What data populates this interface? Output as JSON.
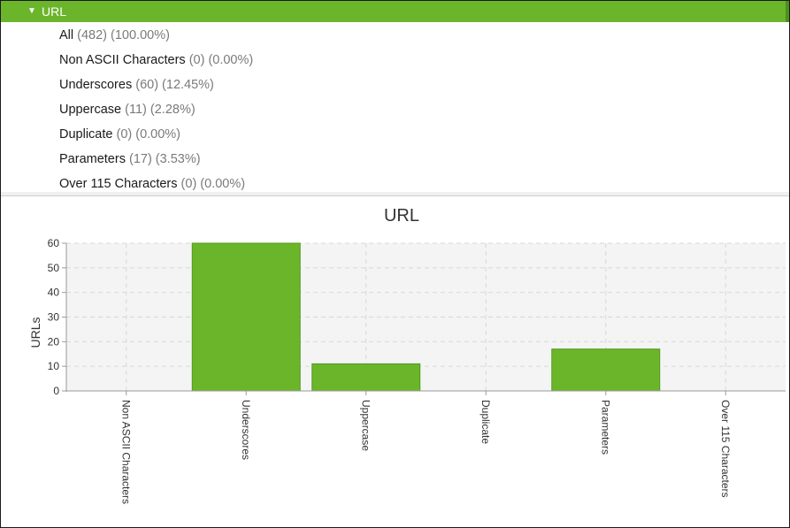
{
  "tree": {
    "header_label": "URL",
    "expand_icon": "triangle-down-icon",
    "items": [
      {
        "label": "All",
        "count": "(482) (100.00%)"
      },
      {
        "label": "Non ASCII Characters",
        "count": "(0) (0.00%)"
      },
      {
        "label": "Underscores",
        "count": "(60) (12.45%)"
      },
      {
        "label": "Uppercase",
        "count": "(11) (2.28%)"
      },
      {
        "label": "Duplicate",
        "count": "(0) (0.00%)"
      },
      {
        "label": "Parameters",
        "count": "(17) (3.53%)"
      },
      {
        "label": "Over 115 Characters",
        "count": "(0) (0.00%)"
      }
    ]
  },
  "colors": {
    "accent": "#6bb52b",
    "bar": "#6bb52b",
    "bar_border": "#4f9a1c",
    "plot_bg": "#f4f4f4",
    "grid": "#d8d8d8"
  },
  "chart_data": {
    "type": "bar",
    "title": "URL",
    "xlabel": "",
    "ylabel": "URLs",
    "categories": [
      "Non ASCII Characters",
      "Underscores",
      "Uppercase",
      "Duplicate",
      "Parameters",
      "Over 115 Characters"
    ],
    "values": [
      0,
      60,
      11,
      0,
      17,
      0
    ],
    "ylim": [
      0,
      60
    ],
    "yticks": [
      0,
      10,
      20,
      30,
      40,
      50,
      60
    ],
    "grid": true,
    "legend": "none"
  }
}
